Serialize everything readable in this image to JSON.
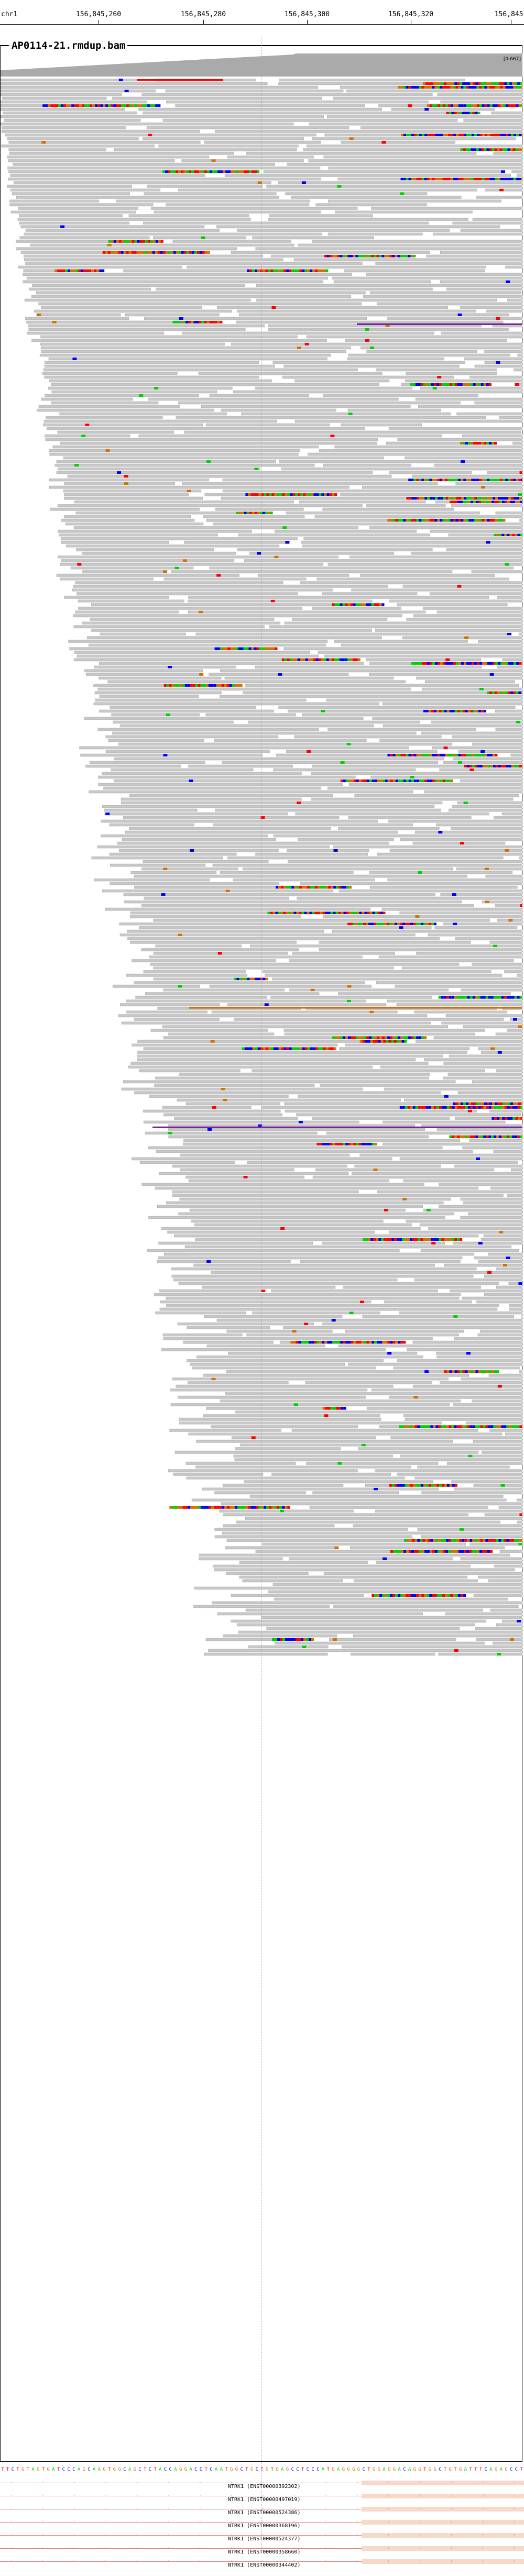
{
  "ruler": {
    "chromosome": "chr1",
    "ticks": [
      {
        "label": "156,845,260"
      },
      {
        "label": "156,845,280"
      },
      {
        "label": "156,845,300"
      },
      {
        "label": "156,845,320"
      },
      {
        "label": "156,845,"
      }
    ]
  },
  "track": {
    "name": "AP0114-21.rmdup.bam",
    "coverage_range": "[0-667]"
  },
  "colors": {
    "read_fill": "#c8c8c8",
    "read_stroke": "#9a9a9a",
    "base_A": "#00d000",
    "base_C": "#0000ff",
    "base_G": "#d17105",
    "base_T": "#ff0000",
    "insertion": "#7b20a0",
    "gene": "#e08080"
  },
  "sequence": "TTCTGTAGTGATCCCAGCAAGTGGCAGCTCTACCAGGACCTCAATGGCTGCTGTGAGCCTCCCATGAGGGGCTGGAGGACAGGTGGCTGTGATTTCAGAGCCT",
  "genes": [
    {
      "label": "NTRK1 (ENST00000392302)"
    },
    {
      "label": "NTRK1 (ENST00000497019)"
    },
    {
      "label": "NTRK1 (ENST00000524386)"
    },
    {
      "label": "NTRK1 (ENST00000368196)"
    },
    {
      "label": "NTRK1 (ENST00000524377)"
    },
    {
      "label": "NTRK1 (ENST00000358660)"
    },
    {
      "label": "NTRK1 (ENST00000344402)"
    }
  ]
}
